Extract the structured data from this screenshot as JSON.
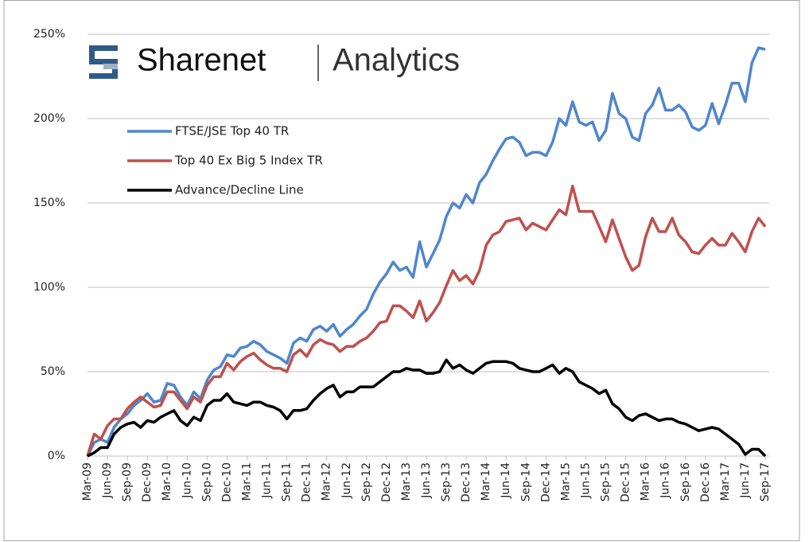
{
  "logo": {
    "brand": "Sharenet",
    "product": "Analytics"
  },
  "chart_data": {
    "type": "line",
    "categories": [
      "Mar-09",
      null,
      null,
      "Jun-09",
      null,
      null,
      "Sep-09",
      null,
      null,
      "Dec-09",
      null,
      null,
      "Mar-10",
      null,
      null,
      "Jun-10",
      null,
      null,
      "Sep-10",
      null,
      null,
      "Dec-10",
      null,
      null,
      "Mar-11",
      null,
      null,
      "Jun-11",
      null,
      null,
      "Sep-11",
      null,
      null,
      "Dec-11",
      null,
      null,
      "Mar-12",
      null,
      null,
      "Jun-12",
      null,
      null,
      "Sep-12",
      null,
      null,
      "Dec-12",
      null,
      null,
      "Mar-13",
      null,
      null,
      "Jun-13",
      null,
      null,
      "Sep-13",
      null,
      null,
      "Dec-13",
      null,
      null,
      "Mar-14",
      null,
      null,
      "Jun-14",
      null,
      null,
      "Sep-14",
      null,
      null,
      "Dec-14",
      null,
      null,
      "Mar-15",
      null,
      null,
      "Jun-15",
      null,
      null,
      "Sep-15",
      null,
      null,
      "Dec-15",
      null,
      null,
      "Mar-16",
      null,
      null,
      "Jun-16",
      null,
      null,
      "Sep-16",
      null,
      null,
      "Dec-16",
      null,
      null,
      "Mar-17",
      null,
      null,
      "Jun-17",
      null,
      null,
      "Sep-17"
    ],
    "series": [
      {
        "name": "FTSE/JSE Top 40 TR",
        "color": "#4f86cd",
        "values": [
          0,
          8,
          10,
          8,
          17,
          22,
          25,
          30,
          33,
          37,
          32,
          33,
          43,
          42,
          35,
          30,
          38,
          34,
          45,
          51,
          53,
          60,
          59,
          64,
          65,
          68,
          66,
          62,
          60,
          58,
          55,
          67,
          70,
          68,
          75,
          77,
          74,
          78,
          71,
          75,
          78,
          83,
          87,
          96,
          103,
          108,
          115,
          110,
          112,
          106,
          127,
          112,
          120,
          128,
          142,
          150,
          147,
          155,
          150,
          162,
          167,
          175,
          182,
          188,
          189,
          186,
          178,
          180,
          180,
          178,
          186,
          200,
          196,
          210,
          198,
          196,
          198,
          187,
          193,
          215,
          203,
          200,
          189,
          187,
          203,
          208,
          218,
          205,
          205,
          208,
          204,
          195,
          193,
          196,
          209,
          197,
          208,
          221,
          221,
          210,
          233,
          242,
          241
        ]
      },
      {
        "name": "Top 40 Ex Big 5 Index TR",
        "color": "#c0504d",
        "values": [
          0,
          13,
          10,
          18,
          22,
          22,
          28,
          32,
          35,
          32,
          29,
          30,
          38,
          38,
          33,
          28,
          35,
          32,
          42,
          47,
          47,
          55,
          51,
          56,
          59,
          61,
          57,
          54,
          52,
          52,
          50,
          60,
          63,
          59,
          66,
          69,
          67,
          66,
          62,
          65,
          65,
          68,
          70,
          74,
          79,
          80,
          89,
          89,
          86,
          82,
          92,
          80,
          85,
          91,
          101,
          110,
          104,
          107,
          102,
          110,
          125,
          131,
          133,
          139,
          140,
          141,
          134,
          138,
          136,
          134,
          140,
          146,
          143,
          160,
          145,
          145,
          145,
          136,
          127,
          140,
          129,
          118,
          110,
          113,
          130,
          141,
          133,
          133,
          141,
          131,
          127,
          121,
          120,
          125,
          129,
          125,
          125,
          132,
          127,
          121,
          133,
          141,
          136
        ]
      },
      {
        "name": "Advance/Decline Line",
        "color": "#000000",
        "values": [
          0,
          2,
          5,
          5,
          13,
          17,
          19,
          20,
          17,
          21,
          20,
          23,
          25,
          27,
          21,
          18,
          23,
          21,
          30,
          33,
          33,
          37,
          32,
          31,
          30,
          32,
          32,
          30,
          29,
          27,
          22,
          27,
          27,
          28,
          33,
          37,
          40,
          42,
          35,
          38,
          38,
          41,
          41,
          41,
          44,
          47,
          50,
          50,
          52,
          51,
          51,
          49,
          49,
          50,
          57,
          52,
          54,
          51,
          49,
          52,
          55,
          56,
          56,
          56,
          55,
          52,
          51,
          50,
          50,
          52,
          54,
          49,
          52,
          50,
          44,
          42,
          40,
          37,
          39,
          31,
          28,
          23,
          21,
          24,
          25,
          23,
          21,
          22,
          22,
          20,
          19,
          17,
          15,
          16,
          17,
          16,
          13,
          10,
          7,
          1,
          4,
          4,
          0
        ]
      }
    ],
    "ylim": [
      0,
      250
    ],
    "yticks": [
      {
        "value": 0,
        "label": "0%"
      },
      {
        "value": 50,
        "label": "50%"
      },
      {
        "value": 100,
        "label": "100%"
      },
      {
        "value": 150,
        "label": "150%"
      },
      {
        "value": 200,
        "label": "200%"
      },
      {
        "value": 250,
        "label": "250%"
      }
    ],
    "grid": true,
    "legend": "upper-left"
  }
}
